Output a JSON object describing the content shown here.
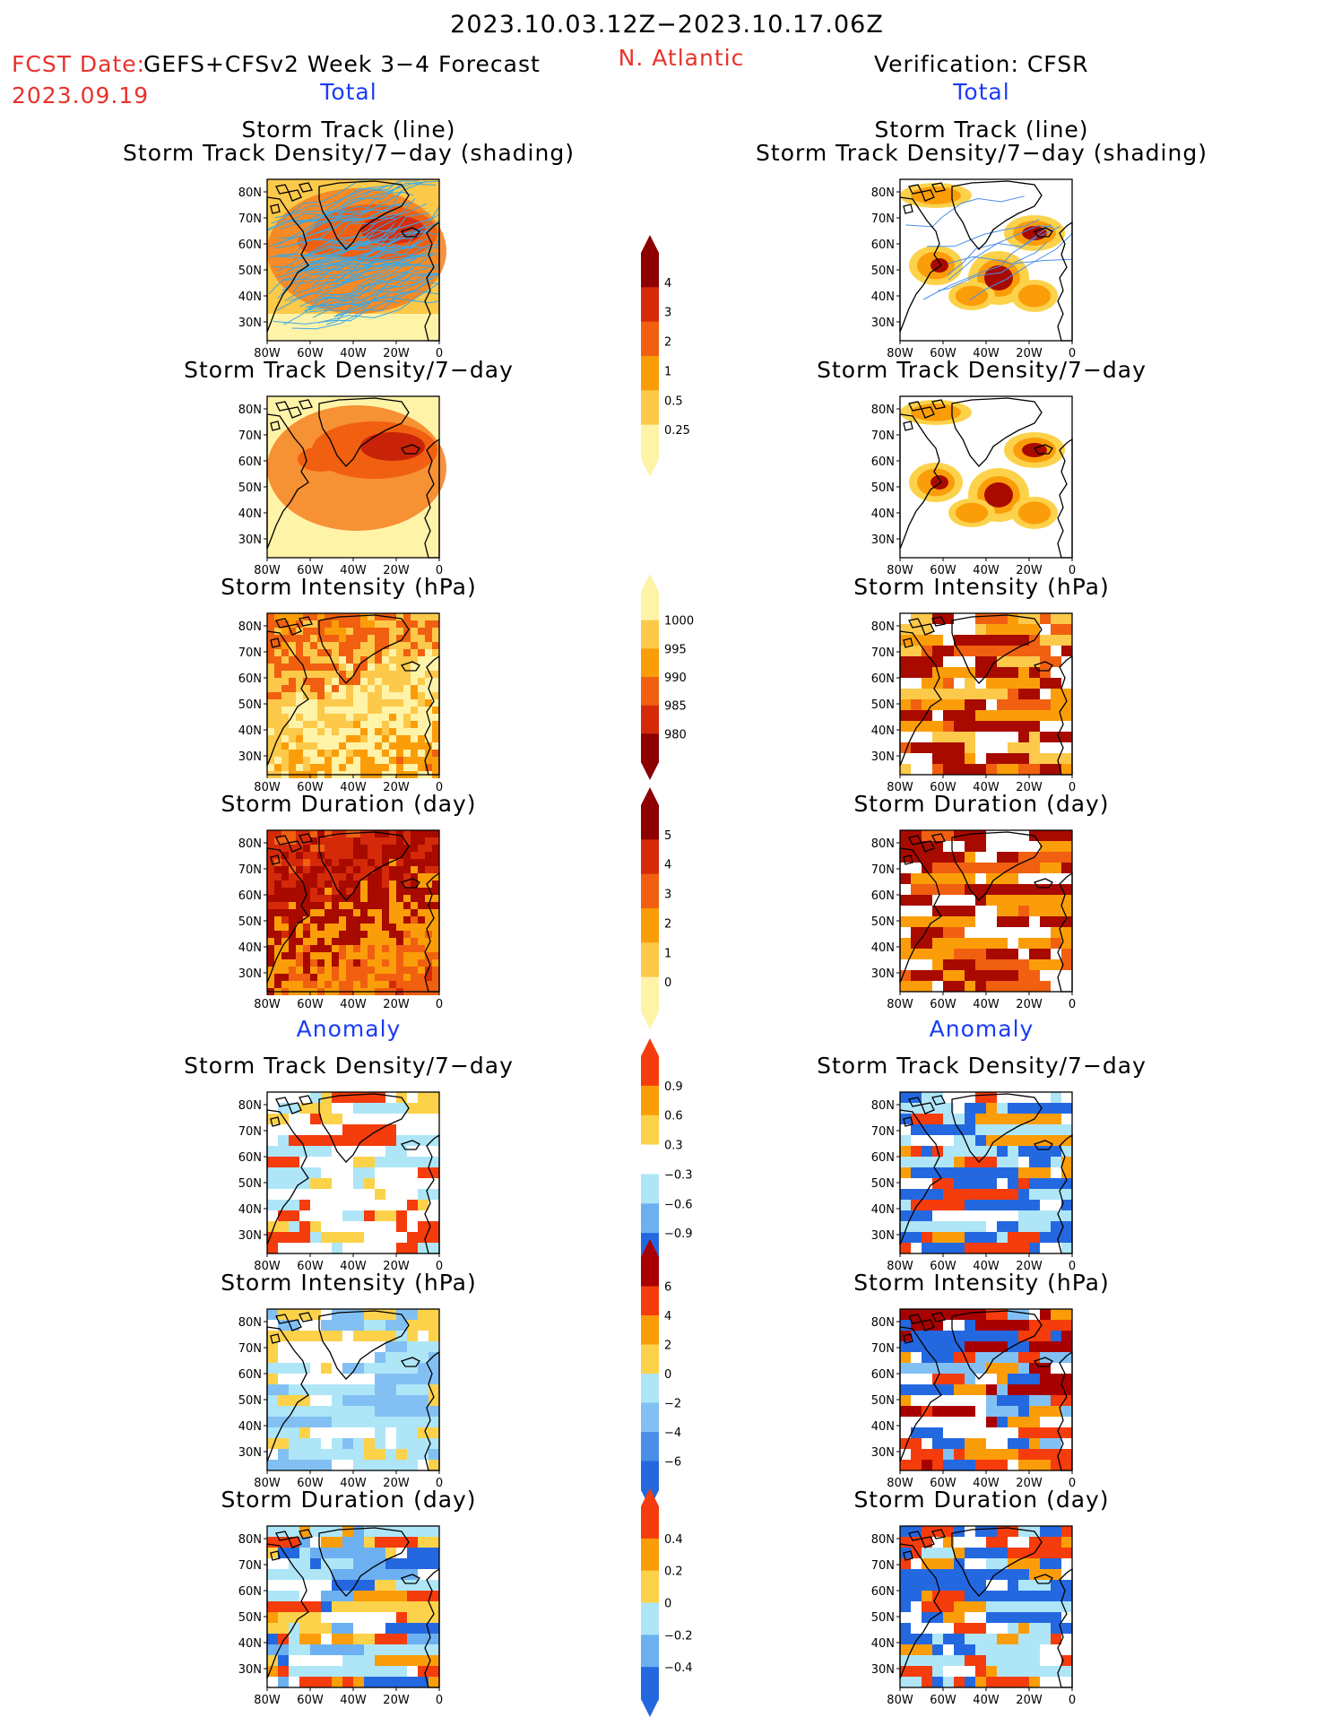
{
  "header": {
    "period": "2023.10.03.12Z−2023.10.17.06Z",
    "fcst_label": "FCST Date:",
    "fcst_date": "2023.09.19",
    "forecast_title": "GEFS+CFSv2 Week 3−4 Forecast",
    "region": "N. Atlantic",
    "verification": "Verification: CFSR"
  },
  "sections": {
    "total": "Total",
    "anomaly": "Anomaly"
  },
  "titles": {
    "track_line": "Storm Track (line)",
    "track_shading": "Storm Track Density/7−day (shading)",
    "density": "Storm Track Density/7−day",
    "intensity": "Storm Intensity (hPa)",
    "duration": "Storm Duration (day)"
  },
  "axes": {
    "lat_ticks": [
      "80N",
      "70N",
      "60N",
      "50N",
      "40N",
      "30N"
    ],
    "lon_ticks": [
      "80W",
      "60W",
      "40W",
      "20W",
      "0"
    ]
  },
  "colorbars": {
    "density_total": {
      "labels": [
        "4",
        "3",
        "2",
        "1",
        "0.5",
        "0.25"
      ],
      "colors": [
        "#8c0000",
        "#d42a0a",
        "#f06010",
        "#fb9d09",
        "#fcc94a",
        "#fff3a8"
      ]
    },
    "intensity_total": {
      "labels": [
        "1000",
        "995",
        "990",
        "985",
        "980"
      ],
      "colors": [
        "#fff3a8",
        "#fcc94a",
        "#fb9d09",
        "#f06010",
        "#d42a0a",
        "#8c0000"
      ]
    },
    "duration_total": {
      "labels": [
        "5",
        "4",
        "3",
        "2",
        "1",
        "0"
      ],
      "colors": [
        "#8c0000",
        "#d42a0a",
        "#f06010",
        "#fb9d09",
        "#fcc94a",
        "#fff3a8"
      ]
    },
    "density_anom": {
      "labels": [
        "0.9",
        "0.6",
        "0.3",
        "−0.3",
        "−0.6",
        "−0.9"
      ],
      "colors": [
        "#f43c0c",
        "#fb9d09",
        "#fcd24a",
        "#ffffff",
        "#aee6f8",
        "#6cb0f2",
        "#2468e0"
      ]
    },
    "intensity_anom": {
      "labels": [
        "6",
        "4",
        "2",
        "0",
        "−2",
        "−4",
        "−6"
      ],
      "colors": [
        "#a80000",
        "#f43c0c",
        "#fb9d09",
        "#fcd24a",
        "#aee6f8",
        "#82c0f4",
        "#4a8ee8",
        "#2468e0"
      ]
    },
    "duration_anom": {
      "labels": [
        "0.4",
        "0.2",
        "0",
        "−0.2",
        "−0.4"
      ],
      "colors": [
        "#f43c0c",
        "#fb9d09",
        "#fcd24a",
        "#aee6f8",
        "#6cb0f2",
        "#2468e0"
      ]
    }
  },
  "panels": [
    {
      "id": "fc-track",
      "column": "forecast",
      "style": "blobs-lines",
      "base": "#f57f20",
      "accent": "#d43010",
      "light": "#fcc94a",
      "lines": "#38a8e8"
    },
    {
      "id": "ob-track",
      "column": "observed",
      "style": "blobs-lines-sparse",
      "base": "#fb9d09",
      "accent": "#a80a00",
      "light": "#fcd24a",
      "lines": "#4a8ee8"
    },
    {
      "id": "fc-density",
      "column": "forecast",
      "style": "blobs",
      "base": "#f57f20",
      "accent": "#c82208",
      "light": "#fff3a8"
    },
    {
      "id": "ob-density",
      "column": "observed",
      "style": "blobs-sparse",
      "base": "#fb9d09",
      "accent": "#a80a00",
      "light": "#fcd24a"
    },
    {
      "id": "fc-intensity",
      "column": "forecast",
      "style": "cells",
      "palette": [
        "#fb9d09",
        "#f06010",
        "#fcc94a",
        "#fff3a8"
      ]
    },
    {
      "id": "ob-intensity",
      "column": "observed",
      "style": "cells-sparse",
      "palette": [
        "#fb9d09",
        "#f06010",
        "#a80a00",
        "#fcc94a",
        "#ffffff"
      ]
    },
    {
      "id": "fc-duration",
      "column": "forecast",
      "style": "cells",
      "palette": [
        "#f06010",
        "#d42a0a",
        "#a80a00",
        "#fb9d09"
      ]
    },
    {
      "id": "ob-duration",
      "column": "observed",
      "style": "cells-sparse",
      "palette": [
        "#fb9d09",
        "#f06010",
        "#a80a00",
        "#ffffff"
      ]
    },
    {
      "id": "fc-density-anom",
      "column": "forecast",
      "style": "cells-anom-light",
      "palette": [
        "#ffffff",
        "#ffffff",
        "#ffffff",
        "#fcd24a",
        "#aee6f8",
        "#f43c0c"
      ]
    },
    {
      "id": "ob-density-anom",
      "column": "observed",
      "style": "cells-anom",
      "palette": [
        "#2468e0",
        "#2468e0",
        "#f43c0c",
        "#ffffff",
        "#aee6f8",
        "#fb9d09"
      ]
    },
    {
      "id": "fc-intensity-anom",
      "column": "forecast",
      "style": "cells-anom",
      "palette": [
        "#aee6f8",
        "#aee6f8",
        "#fcd24a",
        "#ffffff",
        "#82c0f4"
      ]
    },
    {
      "id": "ob-intensity-anom",
      "column": "observed",
      "style": "cells-anom",
      "palette": [
        "#a80000",
        "#f43c0c",
        "#2468e0",
        "#ffffff",
        "#fb9d09",
        "#82c0f4"
      ]
    },
    {
      "id": "fc-duration-anom",
      "column": "forecast",
      "style": "cells-anom",
      "palette": [
        "#aee6f8",
        "#fcd24a",
        "#f43c0c",
        "#6cb0f2",
        "#fb9d09",
        "#2468e0",
        "#ffffff"
      ]
    },
    {
      "id": "ob-duration-anom",
      "column": "observed",
      "style": "cells-anom",
      "palette": [
        "#2468e0",
        "#f43c0c",
        "#ffffff",
        "#aee6f8",
        "#fb9d09"
      ]
    }
  ]
}
